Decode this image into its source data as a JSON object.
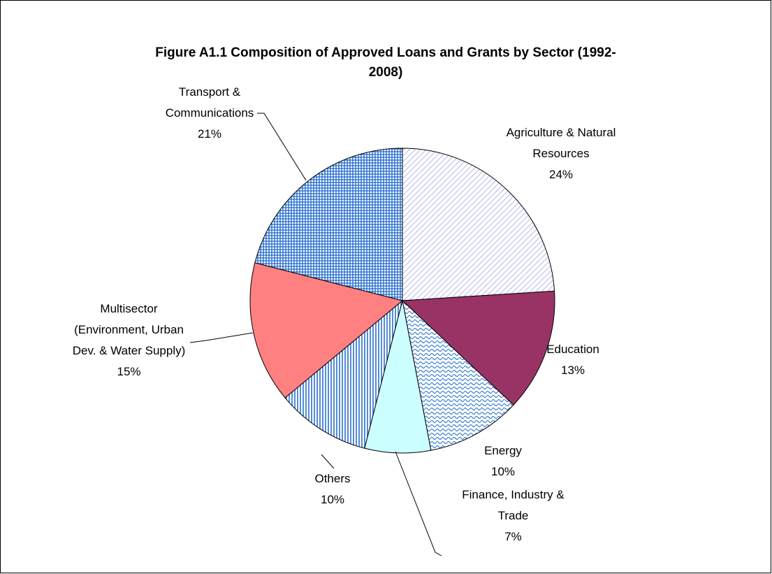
{
  "chart_data": {
    "type": "pie",
    "title": "Figure A1.1 Composition of Approved Loans and Grants by Sector (1992-2008)",
    "categories": [
      "Agriculture & Natural Resources",
      "Education",
      "Energy",
      "Finance, Industry & Trade",
      "Others",
      "Multisector (Environment, Urban Dev. & Water Supply)",
      "Transport & Communications"
    ],
    "values": [
      24,
      13,
      10,
      7,
      10,
      15,
      21
    ],
    "value_labels": [
      "24%",
      "13%",
      "10%",
      "7%",
      "10%",
      "15%",
      "21%"
    ],
    "colors": [
      "#b8b8f0",
      "#993366",
      "#3a7fd0",
      "#ccffff",
      "#1a66cc",
      "#ff8080",
      "#1a66cc"
    ]
  }
}
